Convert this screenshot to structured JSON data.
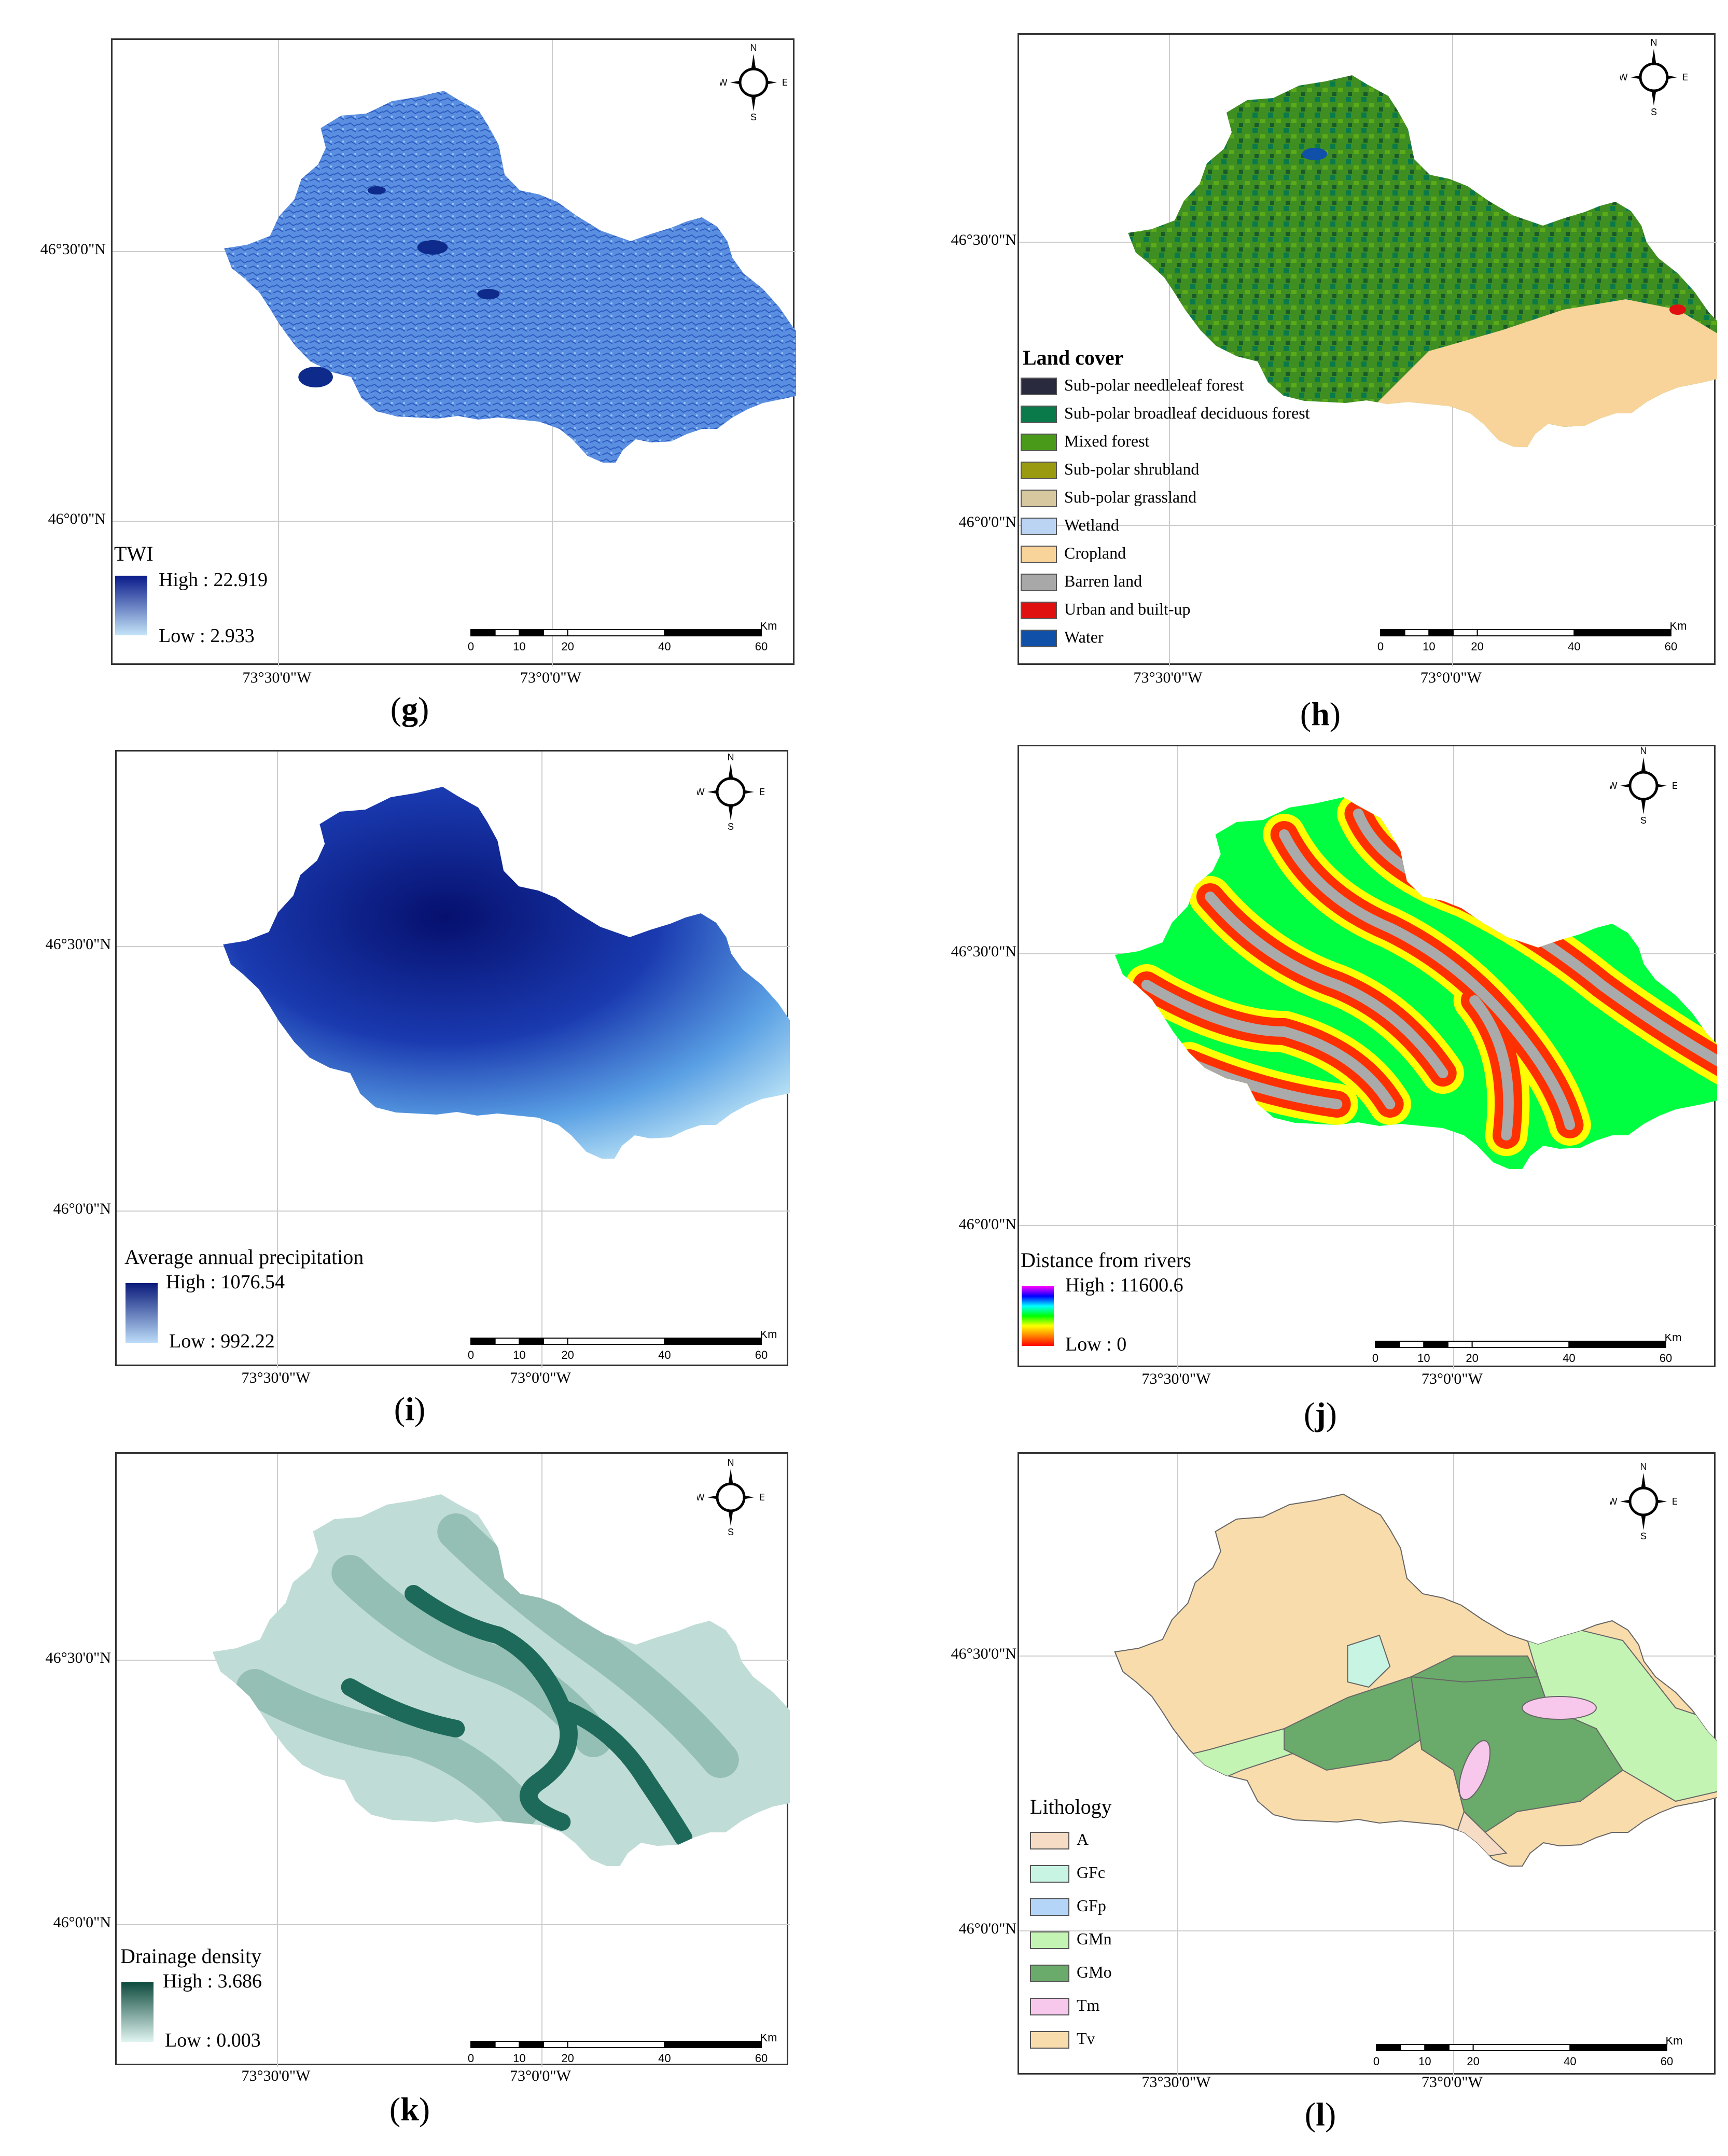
{
  "panels": [
    {
      "id": "g",
      "caption": "g",
      "lat_labels": [
        "46°30'0\"N",
        "46°0'0\"N"
      ],
      "lon_labels": [
        "73°30'0\"W",
        "73°0'0\"W"
      ],
      "legend": {
        "title": "TWI",
        "high": "High : 22.919",
        "low": "Low : 2.933"
      }
    },
    {
      "id": "h",
      "caption": "h",
      "lat_labels": [
        "46°30'0\"N",
        "46°0'0\"N"
      ],
      "lon_labels": [
        "73°30'0\"W",
        "73°0'0\"W"
      ],
      "legend": {
        "title": "Land cover",
        "items": [
          {
            "label": "Sub-polar needleleaf forest",
            "color": "#2a2a3e"
          },
          {
            "label": "Sub-polar broadleaf deciduous forest",
            "color": "#0a7a4a"
          },
          {
            "label": "Mixed forest",
            "color": "#4a9a1a"
          },
          {
            "label": "Sub-polar shrubland",
            "color": "#9a9a10"
          },
          {
            "label": "Sub-polar grassland",
            "color": "#d8c8a0"
          },
          {
            "label": "Wetland",
            "color": "#bcd4f4"
          },
          {
            "label": "Cropland",
            "color": "#f8d49a"
          },
          {
            "label": "Barren land",
            "color": "#a8a8a8"
          },
          {
            "label": "Urban and built-up",
            "color": "#e01010"
          },
          {
            "label": "Water",
            "color": "#1050a8"
          }
        ]
      }
    },
    {
      "id": "i",
      "caption": "i",
      "lat_labels": [
        "46°30'0\"N",
        "46°0'0\"N"
      ],
      "lon_labels": [
        "73°30'0\"W",
        "73°0'0\"W"
      ],
      "legend": {
        "title": "Average annual precipitation",
        "high": "High : 1076.54",
        "low": "Low : 992.22"
      }
    },
    {
      "id": "j",
      "caption": "j",
      "lat_labels": [
        "46°30'0\"N",
        "46°0'0\"N"
      ],
      "lon_labels": [
        "73°30'0\"W",
        "73°0'0\"W"
      ],
      "legend": {
        "title": "Distance from rivers",
        "high": "High : 11600.6",
        "low": "Low : 0"
      }
    },
    {
      "id": "k",
      "caption": "k",
      "lat_labels": [
        "46°30'0\"N",
        "46°0'0\"N"
      ],
      "lon_labels": [
        "73°30'0\"W",
        "73°0'0\"W"
      ],
      "legend": {
        "title": "Drainage density",
        "high": "High : 3.686",
        "low": "Low : 0.003"
      }
    },
    {
      "id": "l",
      "caption": "l",
      "lat_labels": [
        "46°30'0\"N",
        "46°0'0\"N"
      ],
      "lon_labels": [
        "73°30'0\"W",
        "73°0'0\"W"
      ],
      "legend": {
        "title": "Lithology",
        "items": [
          {
            "label": "A",
            "color": "#f6dcc4"
          },
          {
            "label": "GFc",
            "color": "#c8f4e4"
          },
          {
            "label": "GFp",
            "color": "#b4d4f8"
          },
          {
            "label": "GMn",
            "color": "#c4f4b4"
          },
          {
            "label": "GMo",
            "color": "#6aaa6a"
          },
          {
            "label": "Tm",
            "color": "#f8c8ec"
          },
          {
            "label": "Tv",
            "color": "#f8dcac"
          }
        ]
      }
    }
  ],
  "compass": {
    "n": "N",
    "s": "S",
    "e": "E",
    "w": "W"
  },
  "scale": {
    "unit": "Km",
    "ticks": [
      "0",
      "10",
      "20",
      "40",
      "60"
    ]
  }
}
